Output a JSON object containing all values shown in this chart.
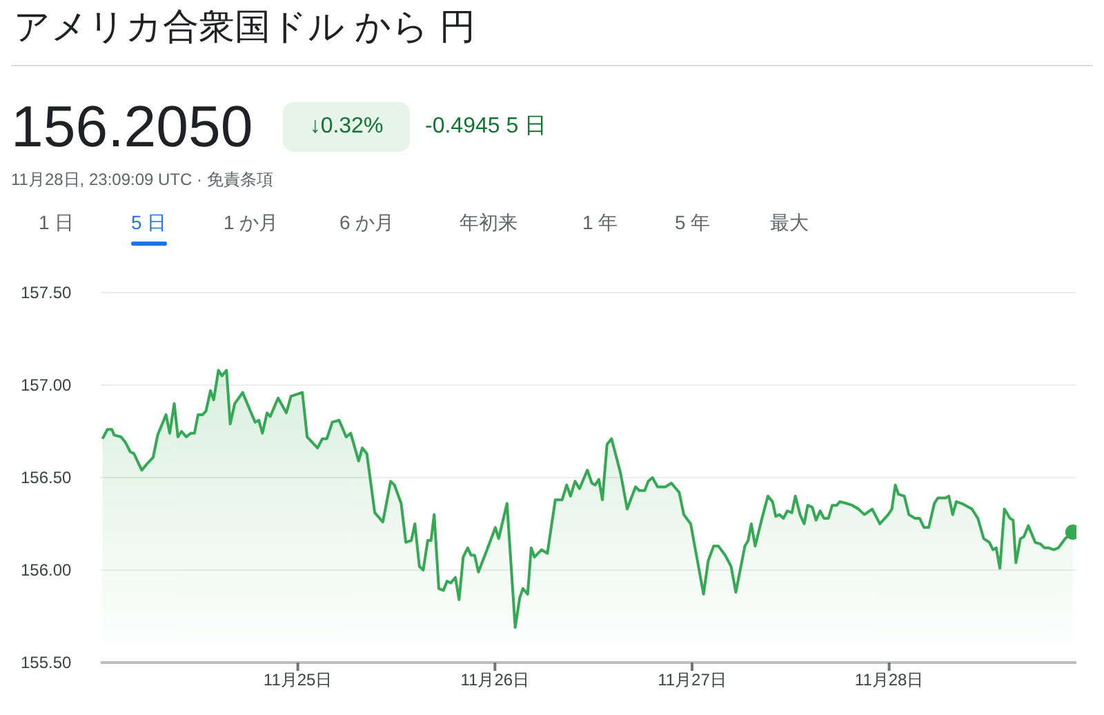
{
  "chart_data": {
    "type": "area",
    "title": "アメリカ合衆国ドル から 円",
    "annotations": [
      "156.2050",
      "↓0.32%",
      "-0.4945 5 日",
      "11月28日, 23:09:09 UTC · 免責条項",
      "1 日",
      "5 日",
      "1 か月",
      "6 か月",
      "年初来",
      "1 年",
      "5 年",
      "最大"
    ],
    "grid": "y",
    "xlim": [
      "--11-24T00:00",
      "--11-28T22:48"
    ],
    "xticks": [
      {
        "value": "--11-25",
        "label": "11月25日"
      },
      {
        "value": "--11-26",
        "label": "11月26日"
      },
      {
        "value": "--11-27",
        "label": "11月27日"
      },
      {
        "value": "--11-28",
        "label": "11月28日"
      }
    ],
    "ylim": [
      155.5,
      157.5
    ],
    "yticks": [
      {
        "value": 155.5,
        "label": "155.50"
      },
      {
        "value": 156,
        "label": "156.00"
      },
      {
        "value": 156.5,
        "label": "156.50"
      },
      {
        "value": 157,
        "label": "157.00"
      },
      {
        "value": 157.5,
        "label": "157.50"
      }
    ],
    "series": [
      {
        "color": "#34a853",
        "x": [
          "--11-24T00:13",
          "--11-24T00:48",
          "--11-24T01:21",
          "--11-24T01:38",
          "--11-24T02:28",
          "--11-24T03:01",
          "--11-24T03:35",
          "--11-24T04:02",
          "--11-24T05:00",
          "--11-24T05:33",
          "--11-24T06:23",
          "--11-24T06:56",
          "--11-24T07:57",
          "--11-24T08:24",
          "--11-24T08:57",
          "--11-24T09:24",
          "--11-24T09:50",
          "--11-24T10:25",
          "--11-24T10:58",
          "--11-24T11:25",
          "--11-24T11:51",
          "--11-24T12:24",
          "--11-24T12:49",
          "--11-24T13:22",
          "--11-24T13:45",
          "--11-24T14:20",
          "--11-24T14:46",
          "--11-24T15:19",
          "--11-24T15:46",
          "--11-24T16:19",
          "--11-24T17:17",
          "--11-24T18:07",
          "--11-24T18:48",
          "--11-24T19:15",
          "--11-24T19:41",
          "--11-24T20:15",
          "--11-24T20:38",
          "--11-24T21:36",
          "--11-24T22:36",
          "--11-24T23:10",
          "--11-25T00:33",
          "--11-25T01:08",
          "--11-25T02:24",
          "--11-25T02:59",
          "--11-25T03:32",
          "--11-25T04:12",
          "--11-25T05:02",
          "--11-25T05:53",
          "--11-25T06:26",
          "--11-25T07:24",
          "--11-25T07:51",
          "--11-25T08:24",
          "--11-25T09:22",
          "--11-25T10:21",
          "--11-25T11:18",
          "--11-25T11:46",
          "--11-25T12:35",
          "--11-25T13:09",
          "--11-25T13:49",
          "--11-25T14:15",
          "--11-25T14:48",
          "--11-25T15:16",
          "--11-25T15:49",
          "--11-25T16:13",
          "--11-25T16:36",
          "--11-25T17:10",
          "--11-25T17:44",
          "--11-25T18:10",
          "--11-25T18:37",
          "--11-25T19:11",
          "--11-25T19:38",
          "--11-25T20:08",
          "--11-25T20:41",
          "--11-25T21:06",
          "--11-25T21:32",
          "--11-25T21:59",
          "--11-25T22:57",
          "--11-26T00:03",
          "--11-26T00:27",
          "--11-26T01:28",
          "--11-26T02:28",
          "--11-26T03:01",
          "--11-26T03:24",
          "--11-26T03:59",
          "--11-26T04:25",
          "--11-26T04:49",
          "--11-26T05:40",
          "--11-26T06:23",
          "--11-26T07:21",
          "--11-26T08:11",
          "--11-26T08:44",
          "--11-26T09:12",
          "--11-26T09:45",
          "--11-26T10:18",
          "--11-26T11:15",
          "--11-26T11:48",
          "--11-26T12:12",
          "--11-26T12:39",
          "--11-26T13:05",
          "--11-26T13:39",
          "--11-26T14:12",
          "--11-26T15:19",
          "--11-26T16:06",
          "--11-26T17:07",
          "--11-26T17:34",
          "--11-26T18:14",
          "--11-26T18:40",
          "--11-26T19:11",
          "--11-26T19:48",
          "--11-26T20:46",
          "--11-26T21:29",
          "--11-26T22:26",
          "--11-26T23:00",
          "--11-26T23:50",
          "--11-27T01:24",
          "--11-27T01:58",
          "--11-27T02:38",
          "--11-27T03:12",
          "--11-27T04:02",
          "--11-27T04:45",
          "--11-27T05:20",
          "--11-27T06:26",
          "--11-27T06:50",
          "--11-27T07:13",
          "--11-27T07:41",
          "--11-27T08:31",
          "--11-27T09:14",
          "--11-27T09:48",
          "--11-27T10:12",
          "--11-27T10:38",
          "--11-27T11:08",
          "--11-27T11:36",
          "--11-27T12:09",
          "--11-27T12:35",
          "--11-27T13:09",
          "--11-27T13:39",
          "--11-27T14:05",
          "--11-27T14:38",
          "--11-27T15:06",
          "--11-27T15:36",
          "--11-27T16:03",
          "--11-27T16:36",
          "--11-27T17:04",
          "--11-27T17:37",
          "--11-27T18:00",
          "--11-27T18:50",
          "--11-27T19:31",
          "--11-27T20:15",
          "--11-27T20:59",
          "--11-27T21:56",
          "--11-27T22:52",
          "--11-27T23:53",
          "--11-28T00:20",
          "--11-28T00:45",
          "--11-28T01:08",
          "--11-28T01:51",
          "--11-28T02:24",
          "--11-28T03:09",
          "--11-28T03:42",
          "--11-28T04:15",
          "--11-28T04:49",
          "--11-28T05:30",
          "--11-28T05:56",
          "--11-28T06:53",
          "--11-28T07:16",
          "--11-28T07:44",
          "--11-28T08:11",
          "--11-28T08:51",
          "--11-28T10:05",
          "--11-28T10:48",
          "--11-28T11:31",
          "--11-28T12:12",
          "--11-28T12:39",
          "--11-28T13:02",
          "--11-28T13:29",
          "--11-28T14:02",
          "--11-28T14:43",
          "--11-28T15:06",
          "--11-28T15:26",
          "--11-28T15:59",
          "--11-28T16:24",
          "--11-28T16:57",
          "--11-28T17:47",
          "--11-28T18:27",
          "--11-28T18:55",
          "--11-28T19:28",
          "--11-28T20:01",
          "--11-28T20:36",
          "--11-28T21:26",
          "--11-28T22:22"
        ],
        "values": [
          156.71,
          156.76,
          156.76,
          156.73,
          156.72,
          156.69,
          156.64,
          156.63,
          156.54,
          156.57,
          156.61,
          156.73,
          156.84,
          156.74,
          156.9,
          156.72,
          156.75,
          156.72,
          156.74,
          156.74,
          156.84,
          156.84,
          156.86,
          156.97,
          156.92,
          157.08,
          157.05,
          157.08,
          156.79,
          156.9,
          156.96,
          156.87,
          156.8,
          156.81,
          156.74,
          156.85,
          156.83,
          156.93,
          156.85,
          156.94,
          156.96,
          156.72,
          156.66,
          156.71,
          156.71,
          156.8,
          156.81,
          156.72,
          156.74,
          156.59,
          156.66,
          156.63,
          156.31,
          156.26,
          156.48,
          156.46,
          156.36,
          156.15,
          156.16,
          156.25,
          156.02,
          156.0,
          156.16,
          156.16,
          156.3,
          155.9,
          155.89,
          155.94,
          155.93,
          155.96,
          155.84,
          156.07,
          156.12,
          156.08,
          156.08,
          155.99,
          156.1,
          156.23,
          156.17,
          156.36,
          155.69,
          155.85,
          155.9,
          155.87,
          156.12,
          156.07,
          156.11,
          156.09,
          156.38,
          156.38,
          156.46,
          156.4,
          156.48,
          156.44,
          156.54,
          156.47,
          156.46,
          156.49,
          156.38,
          156.68,
          156.71,
          156.52,
          156.33,
          156.45,
          156.43,
          156.43,
          156.48,
          156.5,
          156.45,
          156.45,
          156.47,
          156.42,
          156.3,
          156.25,
          155.87,
          156.05,
          156.13,
          156.13,
          156.08,
          156.02,
          155.88,
          156.13,
          156.16,
          156.25,
          156.13,
          156.28,
          156.4,
          156.37,
          156.29,
          156.3,
          156.28,
          156.32,
          156.31,
          156.4,
          156.3,
          156.25,
          156.35,
          156.34,
          156.27,
          156.32,
          156.28,
          156.28,
          156.35,
          156.35,
          156.37,
          156.36,
          156.35,
          156.33,
          156.3,
          156.33,
          156.25,
          156.3,
          156.33,
          156.46,
          156.41,
          156.4,
          156.3,
          156.28,
          156.28,
          156.23,
          156.23,
          156.36,
          156.39,
          156.39,
          156.4,
          156.3,
          156.37,
          156.36,
          156.33,
          156.28,
          156.17,
          156.15,
          156.11,
          156.12,
          156.01,
          156.33,
          156.28,
          156.27,
          156.04,
          156.17,
          156.18,
          156.24,
          156.15,
          156.14,
          156.12,
          156.12,
          156.11,
          156.12,
          156.17,
          156.205
        ]
      }
    ]
  }
}
